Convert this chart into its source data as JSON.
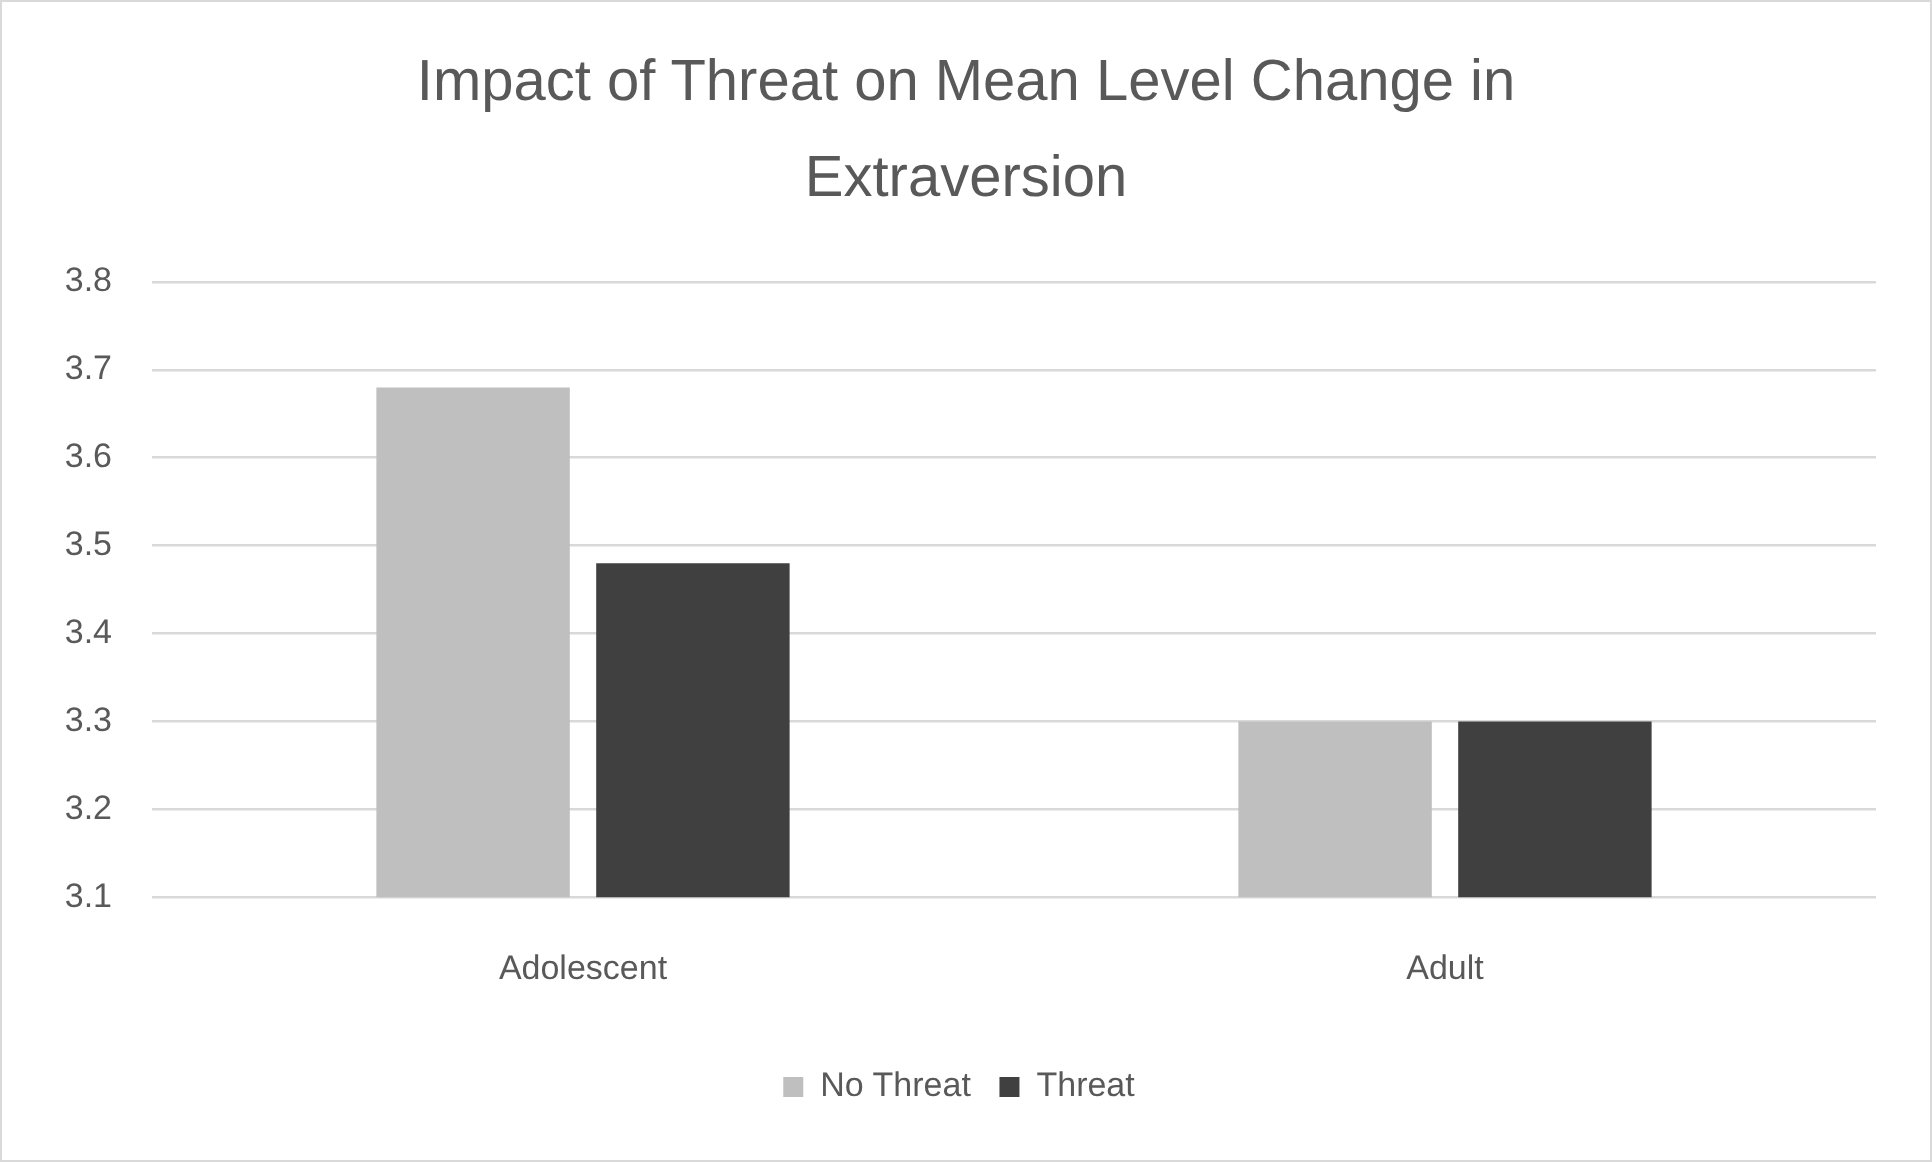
{
  "chart_data": {
    "type": "bar",
    "title": "Impact of Threat on Mean Level Change in Extraversion",
    "categories": [
      "Adolescent",
      "Adult"
    ],
    "series": [
      {
        "name": "No Threat",
        "color": "#bfbfbf",
        "values": [
          3.68,
          3.3
        ]
      },
      {
        "name": "Threat",
        "color": "#404040",
        "values": [
          3.48,
          3.3
        ]
      }
    ],
    "ylim": [
      3.1,
      3.8
    ],
    "yticks": [
      3.1,
      3.2,
      3.3,
      3.4,
      3.5,
      3.6,
      3.7,
      3.8
    ],
    "grid": "y",
    "legend": "bottom"
  }
}
